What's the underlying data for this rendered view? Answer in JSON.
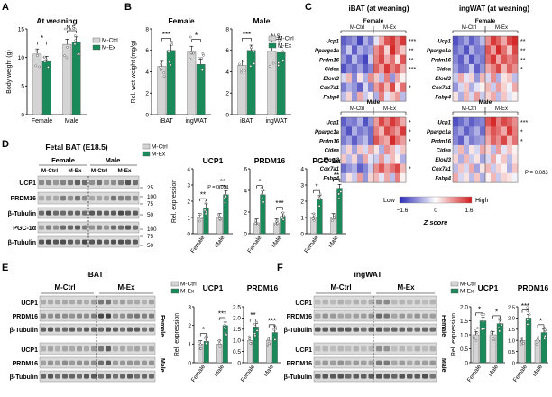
{
  "colors": {
    "ctrl": "#d4d4d4",
    "ex": "#1a8a5a",
    "heat_low": "#2a2ab4",
    "heat_mid": "#ffffff",
    "heat_high": "#d21c1c",
    "blot_bg": "#dadada",
    "band": "#3a3a3a"
  },
  "legend": {
    "ctrl": "M-Ctrl",
    "ex": "M-Ex"
  },
  "panels": {
    "A": "A",
    "B": "B",
    "C": "C",
    "D": "D",
    "E": "E",
    "F": "F"
  },
  "yaxis_labels": {
    "body_weight": "Body weight (g)",
    "rel_wet_weight": "Rel. wet weight (mg/g)",
    "rel_expression": "Rel. expression"
  },
  "chart_data": [
    {
      "id": "A",
      "type": "bar",
      "title": "At weaning",
      "ylabel": "Body weight (g)",
      "categories": [
        "Female",
        "Male"
      ],
      "ylim": [
        0,
        15
      ],
      "yticks": [
        "0",
        "5",
        "10",
        "15"
      ],
      "series": [
        {
          "name": "M-Ctrl",
          "values": [
            10.6,
            12.3
          ]
        },
        {
          "name": "M-Ex",
          "values": [
            9.3,
            12.7
          ]
        }
      ],
      "significance": [
        "*",
        "N.S."
      ]
    },
    {
      "id": "B1",
      "type": "bar",
      "title": "Female",
      "ylabel": "Rel. wet weight (mg/g)",
      "categories": [
        "iBAT",
        "ingWAT"
      ],
      "ylim": [
        0,
        8
      ],
      "yticks": [
        "0",
        "2",
        "4",
        "6",
        "8"
      ],
      "series": [
        {
          "name": "M-Ctrl",
          "values": [
            4.5,
            5.9
          ]
        },
        {
          "name": "M-Ex",
          "values": [
            6.0,
            4.7
          ]
        }
      ],
      "significance": [
        "***",
        "*"
      ]
    },
    {
      "id": "B2",
      "type": "bar",
      "title": "Male",
      "categories": [
        "iBAT",
        "ingWAT"
      ],
      "ylim": [
        0,
        8
      ],
      "yticks": [
        "0",
        "2",
        "4",
        "6",
        "8"
      ],
      "series": [
        {
          "name": "M-Ctrl",
          "values": [
            4.6,
            5.9
          ]
        },
        {
          "name": "M-Ex",
          "values": [
            6.0,
            5.8
          ]
        }
      ],
      "significance": [
        "***",
        "N.S."
      ]
    },
    {
      "id": "D1",
      "type": "bar",
      "title": "UCP1",
      "ylabel": "Rel. expression",
      "categories": [
        "Female",
        "Male"
      ],
      "ylim": [
        0,
        4
      ],
      "yticks": [
        "0",
        "1",
        "2",
        "3",
        "4"
      ],
      "series": [
        {
          "name": "M-Ctrl",
          "values": [
            1.0,
            1.0
          ]
        },
        {
          "name": "M-Ex",
          "values": [
            1.6,
            2.4
          ]
        }
      ],
      "significance": [
        "**",
        "**"
      ],
      "annotation": "P = 0.051"
    },
    {
      "id": "D2",
      "type": "bar",
      "title": "PRDM16",
      "categories": [
        "Female",
        "Male"
      ],
      "ylim": [
        0,
        6
      ],
      "yticks": [
        "0",
        "2",
        "4",
        "6"
      ],
      "series": [
        {
          "name": "M-Ctrl",
          "values": [
            1.0,
            1.0
          ]
        },
        {
          "name": "M-Ex",
          "values": [
            3.6,
            1.6
          ]
        }
      ],
      "significance": [
        "*",
        "***"
      ]
    },
    {
      "id": "D3",
      "type": "bar",
      "title": "PGC-1α",
      "categories": [
        "Female",
        "Male"
      ],
      "ylim": [
        0,
        4
      ],
      "yticks": [
        "0",
        "1",
        "2",
        "3",
        "4"
      ],
      "series": [
        {
          "name": "M-Ctrl",
          "values": [
            1.0,
            1.0
          ]
        },
        {
          "name": "M-Ex",
          "values": [
            2.1,
            2.8
          ]
        }
      ],
      "significance": [
        "*",
        "**"
      ]
    },
    {
      "id": "E1",
      "type": "bar",
      "title": "UCP1",
      "ylabel": "Rel. expression",
      "categories": [
        "Female",
        "Male"
      ],
      "ylim": [
        0,
        3
      ],
      "yticks": [
        "0",
        "1",
        "2",
        "3"
      ],
      "series": [
        {
          "name": "M-Ctrl",
          "values": [
            1.0,
            1.0
          ]
        },
        {
          "name": "M-Ex",
          "values": [
            1.15,
            2.0
          ]
        }
      ],
      "significance": [
        "*",
        "***"
      ]
    },
    {
      "id": "E2",
      "type": "bar",
      "title": "PRDM16",
      "categories": [
        "Female",
        "Male"
      ],
      "ylim": [
        0,
        2.5
      ],
      "yticks": [
        "0",
        "0.5",
        "1.0",
        "1.5",
        "2.0",
        "2.5"
      ],
      "series": [
        {
          "name": "M-Ctrl",
          "values": [
            1.0,
            1.0
          ]
        },
        {
          "name": "M-Ex",
          "values": [
            1.6,
            1.35
          ]
        }
      ],
      "significance": [
        "**",
        "***"
      ]
    },
    {
      "id": "F1",
      "type": "bar",
      "title": "UCP1",
      "ylabel": "Rel. expression",
      "categories": [
        "Female",
        "Male"
      ],
      "ylim": [
        0,
        2.0
      ],
      "yticks": [
        "0",
        "0.5",
        "1.0",
        "1.5",
        "2.0"
      ],
      "series": [
        {
          "name": "M-Ctrl",
          "values": [
            1.0,
            1.0
          ]
        },
        {
          "name": "M-Ex",
          "values": [
            1.5,
            1.4
          ]
        }
      ],
      "significance": [
        "*",
        "*"
      ]
    },
    {
      "id": "F2",
      "type": "bar",
      "title": "PRDM16",
      "categories": [
        "Female",
        "Male"
      ],
      "ylim": [
        0,
        2.5
      ],
      "yticks": [
        "0",
        "0.5",
        "1.0",
        "1.5",
        "2.0",
        "2.5"
      ],
      "series": [
        {
          "name": "M-Ctrl",
          "values": [
            1.0,
            1.0
          ]
        },
        {
          "name": "M-Ex",
          "values": [
            2.0,
            1.35
          ]
        }
      ],
      "significance": [
        "***",
        "*"
      ]
    }
  ],
  "heatmaps": {
    "C_title_iBAT": "iBAT (at weaning)",
    "C_title_ingWAT": "ingWAT (at weaning)",
    "genes": [
      "Ucp1",
      "Ppargc1a",
      "Prdm16",
      "Cidea",
      "Elovl3",
      "Cox7a1",
      "Fabp4"
    ],
    "blocks": [
      {
        "id": "iBAT-female",
        "sex": "Female",
        "groups": [
          "M-Ctrl",
          "M-Ex"
        ],
        "sig": [
          "***",
          "**",
          "**",
          "***",
          "",
          "*",
          ""
        ],
        "values": [
          [
            -1.2,
            -1.0,
            -0.8,
            -1.4,
            -0.6,
            -1.0,
            -0.2,
            0.6,
            1.2,
            1.4,
            0.9,
            1.4
          ],
          [
            -1.0,
            -0.4,
            -1.2,
            -0.6,
            -0.9,
            -0.7,
            0.8,
            1.2,
            0.3,
            1.5,
            0.9,
            0.4
          ],
          [
            -0.8,
            -1.2,
            -0.5,
            -1.0,
            -1.4,
            -0.4,
            0.9,
            1.3,
            0.6,
            1.0,
            0.2,
            1.2
          ],
          [
            -1.3,
            -0.9,
            -1.1,
            -0.7,
            -1.2,
            -0.9,
            1.1,
            0.7,
            1.4,
            0.9,
            1.2,
            0.6
          ],
          [
            -0.3,
            0.5,
            -0.9,
            0.2,
            -0.6,
            0.8,
            0.4,
            -0.5,
            0.9,
            -0.8,
            0.6,
            0.1
          ],
          [
            -1.0,
            -0.6,
            -0.8,
            -1.2,
            -0.3,
            -0.9,
            0.7,
            1.1,
            0.5,
            1.3,
            0.2,
            1.0
          ],
          [
            -0.5,
            0.3,
            -0.8,
            0.6,
            -0.4,
            0.1,
            -0.6,
            0.9,
            -0.2,
            0.4,
            0.7,
            -0.5
          ]
        ]
      },
      {
        "id": "ingWAT-female",
        "sex": "Female",
        "groups": [
          "M-Ctrl",
          "M-Ex"
        ],
        "sig": [
          "**",
          "**",
          "**",
          "*",
          "",
          "",
          ""
        ],
        "values": [
          [
            -1.3,
            -1.0,
            -0.7,
            -1.2,
            -0.9,
            -0.5,
            0.8,
            1.4,
            1.1,
            0.6,
            1.3,
            1.5
          ],
          [
            -1.1,
            -0.8,
            -1.3,
            -0.6,
            -1.0,
            -0.9,
            1.2,
            0.7,
            1.5,
            1.0,
            0.4,
            1.3
          ],
          [
            -0.9,
            -1.2,
            -0.6,
            -1.3,
            -0.8,
            -1.0,
            1.0,
            1.4,
            0.6,
            1.2,
            0.9,
            1.1
          ],
          [
            -0.7,
            -1.1,
            -1.0,
            -0.4,
            -1.2,
            -0.8,
            0.6,
            0.9,
            1.3,
            0.5,
            1.1,
            0.8
          ],
          [
            -0.4,
            0.6,
            -0.2,
            0.3,
            -0.8,
            0.5,
            -0.3,
            0.8,
            -0.6,
            0.2,
            0.4,
            -0.5
          ],
          [
            -0.8,
            -0.3,
            0.4,
            -0.6,
            -0.2,
            0.1,
            0.5,
            -0.4,
            0.7,
            0.3,
            -0.1,
            0.6
          ],
          [
            0.2,
            -0.6,
            0.5,
            -0.3,
            0.7,
            -0.4,
            0.3,
            0.6,
            -0.5,
            0.4,
            -0.2,
            0.1
          ]
        ]
      },
      {
        "id": "iBAT-male",
        "sex": "Male",
        "groups": [
          "M-Ctrl",
          "M-Ex"
        ],
        "sig": [
          "*",
          "*",
          "*",
          "",
          "",
          "*",
          ""
        ],
        "values": [
          [
            -1.2,
            -0.9,
            -1.0,
            -0.6,
            -1.3,
            -0.8,
            0.7,
            1.3,
            0.9,
            1.4,
            1.1,
            0.6
          ],
          [
            -0.9,
            -1.3,
            -0.6,
            -1.0,
            -0.8,
            -1.1,
            0.9,
            0.5,
            1.3,
            1.0,
            0.7,
            1.4
          ],
          [
            -1.0,
            -0.7,
            -1.2,
            -0.8,
            -0.5,
            -1.1,
            1.2,
            0.8,
            0.6,
            1.5,
            1.0,
            0.7
          ],
          [
            -0.5,
            0.3,
            -0.7,
            0.4,
            -0.3,
            0.6,
            0.2,
            -0.6,
            0.8,
            0.5,
            -0.2,
            0.4
          ],
          [
            0.4,
            -0.5,
            0.3,
            -0.8,
            0.6,
            -0.2,
            -0.4,
            0.7,
            -0.3,
            0.5,
            0.1,
            -0.6
          ],
          [
            -1.1,
            -0.8,
            -0.6,
            -1.2,
            -0.9,
            -0.4,
            0.8,
            1.2,
            0.7,
            1.0,
            1.3,
            0.5
          ],
          [
            -0.6,
            0.2,
            -0.4,
            0.7,
            -0.8,
            0.3,
            0.5,
            -0.2,
            0.6,
            -0.5,
            0.9,
            0.1
          ]
        ]
      },
      {
        "id": "ingWAT-male",
        "sex": "Male",
        "groups": [
          "M-Ctrl",
          "M-Ex"
        ],
        "sig": [
          "***",
          "*",
          "*",
          "",
          "",
          "",
          ""
        ],
        "values": [
          [
            -1.3,
            -1.1,
            -0.8,
            -1.2,
            -1.0,
            -0.9,
            1.2,
            1.5,
            0.9,
            1.3,
            1.1,
            0.8
          ],
          [
            -1.0,
            -0.7,
            -1.2,
            -0.9,
            -0.6,
            -1.1,
            0.8,
            1.2,
            1.0,
            0.6,
            1.4,
            0.9
          ],
          [
            -0.9,
            -1.2,
            -0.5,
            -1.0,
            -0.8,
            -0.7,
            0.6,
            1.1,
            0.8,
            1.3,
            0.5,
            1.0
          ],
          [
            -0.4,
            0.5,
            -0.6,
            0.2,
            -0.3,
            0.6,
            0.3,
            -0.5,
            0.7,
            -0.2,
            0.4,
            0.1
          ],
          [
            0.3,
            -0.6,
            0.5,
            -0.4,
            0.2,
            -0.7,
            -0.3,
            0.6,
            -0.1,
            0.4,
            -0.5,
            0.2
          ],
          [
            -0.5,
            0.4,
            -0.3,
            0.6,
            -0.7,
            0.2,
            0.5,
            -0.4,
            0.3,
            0.1,
            -0.6,
            0.4
          ],
          [
            0.6,
            -0.3,
            0.2,
            -0.5,
            0.4,
            -0.6,
            0.1,
            0.5,
            -0.4,
            0.3,
            0.2,
            -0.1
          ]
        ]
      }
    ],
    "pval_note": "P = 0.083",
    "colorbar": {
      "low": "Low",
      "high": "High",
      "ticks": [
        "−1.6",
        "0",
        "1.6"
      ],
      "label": "Z score"
    }
  },
  "blots": {
    "D": {
      "title": "Fetal BAT (E18.5)",
      "groups": [
        "Female",
        "Male"
      ],
      "sub": [
        "M-Ctrl",
        "M-Ex",
        "M-Ctrl",
        "M-Ex"
      ],
      "proteins": [
        "UCP1",
        "PRDM16",
        "β-Tubulin",
        "PGC-1α",
        "β-Tubulin"
      ],
      "markers": [
        "25",
        "100",
        "75",
        "50",
        "100",
        "75",
        "50"
      ]
    },
    "E": {
      "title": "iBAT",
      "groups": [
        "M-Ctrl",
        "M-Ex"
      ],
      "proteins_f": [
        "UCP1",
        "PRDM16",
        "β-Tubulin"
      ],
      "proteins_m": [
        "UCP1",
        "PRDM16",
        "β-Tubulin"
      ],
      "sexes": [
        "Female",
        "Male"
      ]
    },
    "F": {
      "title": "ingWAT",
      "groups": [
        "M-Ctrl",
        "M-Ex"
      ],
      "proteins_f": [
        "UCP1",
        "PRDM16",
        "β-Tubulin"
      ],
      "proteins_m": [
        "UCP1",
        "PRDM16",
        "β-Tubulin"
      ],
      "sexes": [
        "Female",
        "Male"
      ]
    }
  }
}
